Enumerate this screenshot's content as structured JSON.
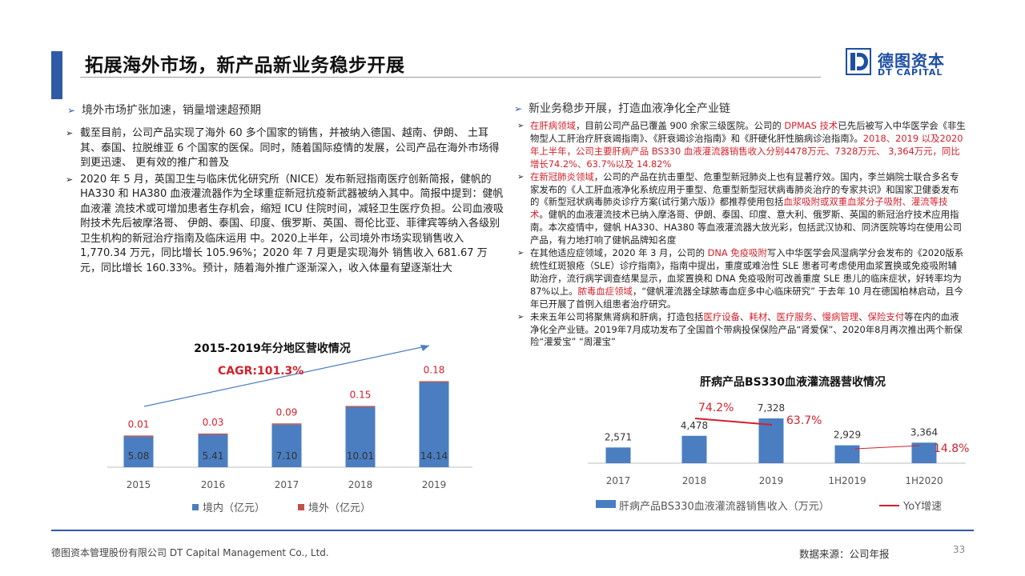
{
  "header": {
    "title": "拓展海外市场，新产品新业务稳步开展",
    "logo_cn": "德图资本",
    "logo_en": "DT CAPITAL"
  },
  "left": {
    "heading": "境外市场扩张加速，销量增速超预期",
    "paragraphs": [
      "截至目前，公司产品实现了海外 60 多个国家的销售，并被纳入德国、越南、伊朗、 土耳其、泰国、拉脱维亚 6 个国家的医保。同时，随着国际疫情的发展，公司产品在海外市场得到更迅速、 更有效的推广和普及",
      "2020 年 5 月，英国卫生与临床优化研究所（NICE）发布新冠指南医疗创新简报，健帆的 HA330 和 HA380 血液灌流器作为全球重症新冠抗疫新武器被纳入其中。简报中提到：健帆血液灌 流技术或可增加患者生存机会，缩短 ICU 住院时间，减轻卫生医疗负担。公司血液吸附技术先后被摩洛哥、 伊朗、泰国、印度、俄罗斯、英国、哥伦比亚、菲律宾等纳入各级别卫生机构的新冠治疗指南及临床运用 中。2020上半年，公司境外市场实现销售收入 1,770.34 万元，同比增长 105.96%；2020 年 7 月更是实现海外 销售收入 681.67 万元，同比增长 160.33%。预计，随着海外推广逐渐深入，收入体量有望逐渐壮大"
    ]
  },
  "right": {
    "heading": "新业务稳步开展，打造血液净化全产业链",
    "p1": {
      "r1": "在肝病领域",
      "t1": "，目前公司产品已覆盖 900 余家三级医院。公司的 ",
      "r2": "DPMAS 技术",
      "t2": "已先后被写入中华医学会《非生物型人工肝治疗肝衰竭指南》、《肝衰竭诊治指南》和《肝硬化肝性脑病诊治指南》。",
      "r3": "2018、2019 以及2020年上半年，公司主要肝病产品 BS330 血液灌流器销售收入分别4478万元、7328万元、 3,364万元，同比增长74.2%、63.7%以及 14.82%"
    },
    "p2": {
      "r1": "在新冠肺炎领域",
      "t1": "，公司的产品在抗击重型、危重型新冠肺炎上也有显著疗效。国内，李兰娟院士联合多名专家发布的《人工肝血液净化系统应用于重型、危重型新型冠状病毒肺炎治疗的专家共识》和国家卫健委发布的《新型冠状病毒肺炎诊疗方案(试行第六版)》都推荐使用包括",
      "r2": "血浆吸附或双重血浆分子吸附、灌流等技术",
      "t2": "。健帆的血液灌流技术已纳入摩洛哥、伊朗、泰国、印度、意大利、俄罗斯、英国的新冠治疗技术应用指南。本次疫情中，健帆 HA330、HA380 等血液灌流器大放光彩，包括武汉协和、同济医院等均在使用公司产品，有力地打响了健帆品牌知名度"
    },
    "p3": {
      "t1": "在其他适应症领域，2020 年 3 月，公司的 ",
      "r1": "DNA 免疫吸附",
      "t2": "写入中华医学会风湿病学分会发布的《2020版系统性红斑狼疮（SLE）诊疗指南》，指南中提出，重度或难治性 SLE 患者可考虑使用血浆置换或免疫吸附辅助治疗，流行病学调查结果显示，血浆置换和 DNA 免疫吸附可改善重度 SLE 患儿的临床症状，好转率均为 87%以上。",
      "r2": "脓毒血症领域",
      "t3": "，“健帆灌流器全球脓毒血症多中心临床研究” 于去年 10 月在德国柏林启动，且今年已开展了首例入组患者治疗研究。"
    },
    "p4": {
      "t1": "未来五年公司将聚焦肾病和肝病，打造包括",
      "r1": "医疗设备",
      "s1": "、",
      "r2": "耗材",
      "s2": "、",
      "r3": "医疗服务",
      "s3": "、",
      "r4": "慢病管理",
      "s4": "、",
      "r5": "保险支付",
      "t2": "等在内的血液净化全产业链。2019年7月成功发布了全国首个带病投保保险产品“肾爱保”、2020年8月再次推出两个新保险“灌爱宝” “周灌宝”"
    }
  },
  "chart_data": [
    {
      "type": "bar",
      "title": "2015-2019年分地区营收情况",
      "annotation": "CAGR:101.3%",
      "categories": [
        "2015",
        "2016",
        "2017",
        "2018",
        "2019"
      ],
      "series": [
        {
          "name": "境内（亿元）",
          "values": [
            5.08,
            5.41,
            7.1,
            10.01,
            14.14
          ],
          "color": "#4a7ec1"
        },
        {
          "name": "境外（亿元）",
          "values": [
            0.01,
            0.03,
            0.09,
            0.15,
            0.18
          ],
          "color": "#c0504d"
        }
      ],
      "value_labels": {
        "domestic": [
          "5.08",
          "5.41",
          "7.10",
          "10.01",
          "14.14"
        ],
        "overseas": [
          "0.01",
          "0.03",
          "0.09",
          "0.15",
          "0.18"
        ]
      },
      "stacked": true,
      "legend_position": "bottom",
      "grid": false
    },
    {
      "type": "bar",
      "title": "肝病产品BS330血液灌流器营收情况",
      "categories": [
        "2017",
        "2018",
        "2019",
        "1H2019",
        "1H2020"
      ],
      "series": [
        {
          "name": "肝病产品BS330血液灌流器销售收入（万元）",
          "values": [
            2571,
            4478,
            7328,
            2929,
            3364
          ],
          "color": "#4a7ec1"
        },
        {
          "name": "YoY增速",
          "type": "line",
          "values": [
            null,
            74.2,
            63.7,
            null,
            14.8
          ],
          "color": "#d3212b"
        }
      ],
      "value_labels": [
        "2,571",
        "4,478",
        "7,328",
        "2,929",
        "3,364"
      ],
      "yoy_labels": [
        "74.2%",
        "63.7%",
        "14.8%"
      ],
      "legend_position": "bottom",
      "grid": false
    }
  ],
  "footer": {
    "company": "德图资本管理股份有限公司 DT Capital Management Co., Ltd.",
    "source": "数据来源：公司年报",
    "page": "33"
  }
}
